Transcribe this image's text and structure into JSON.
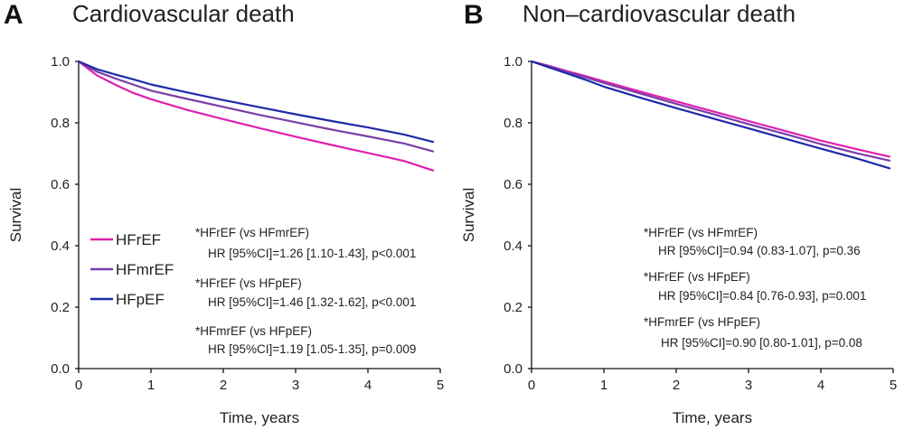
{
  "chart_data": [
    {
      "type": "line",
      "panel_label": "A",
      "title": "Cardiovascular death",
      "xlabel": "Time, years",
      "ylabel": "Survival",
      "xlim": [
        0,
        5
      ],
      "ylim": [
        0.0,
        1.0
      ],
      "x_ticks": [
        "0",
        "1",
        "2",
        "3",
        "4",
        "5"
      ],
      "y_ticks": [
        "0.0",
        "0.2",
        "0.4",
        "0.6",
        "0.8",
        "1.0"
      ],
      "grid": false,
      "legend_position": "left-middle",
      "series": [
        {
          "name": "HFrEF",
          "color": "#e020b0",
          "x": [
            0,
            0.25,
            0.5,
            0.75,
            1,
            1.5,
            2,
            2.5,
            3,
            3.5,
            4,
            4.5,
            4.9
          ],
          "values": [
            1.0,
            0.955,
            0.925,
            0.898,
            0.877,
            0.842,
            0.812,
            0.783,
            0.755,
            0.728,
            0.702,
            0.676,
            0.645
          ]
        },
        {
          "name": "HFmrEF",
          "color": "#7a3ea8",
          "x": [
            0,
            0.25,
            0.5,
            0.75,
            1,
            1.5,
            2,
            2.5,
            3,
            3.5,
            4,
            4.5,
            4.9
          ],
          "values": [
            1.0,
            0.967,
            0.945,
            0.925,
            0.905,
            0.878,
            0.852,
            0.826,
            0.802,
            0.778,
            0.756,
            0.733,
            0.707
          ]
        },
        {
          "name": "HFpEF",
          "color": "#1f2aa8",
          "x": [
            0,
            0.25,
            0.5,
            0.75,
            1,
            1.5,
            2,
            2.5,
            3,
            3.5,
            4,
            4.5,
            4.9
          ],
          "values": [
            1.0,
            0.975,
            0.958,
            0.942,
            0.925,
            0.899,
            0.874,
            0.851,
            0.828,
            0.806,
            0.785,
            0.762,
            0.738
          ]
        }
      ],
      "annotations": [
        {
          "line1": "*HFrEF (vs HFmrEF)",
          "line2": "HR [95%CI]=1.26 [1.10-1.43], p<0.001"
        },
        {
          "line1": "*HFrEF (vs HFpEF)",
          "line2": "HR [95%CI]=1.46 [1.32-1.62], p<0.001"
        },
        {
          "line1": "*HFmrEF (vs HFpEF)",
          "line2": "HR [95%CI]=1.19 [1.05-1.35], p=0.009"
        }
      ]
    },
    {
      "type": "line",
      "panel_label": "B",
      "title": "Non–cardiovascular death",
      "xlabel": "Time, years",
      "ylabel": "Survival",
      "xlim": [
        0,
        5
      ],
      "ylim": [
        0.0,
        1.0
      ],
      "x_ticks": [
        "0",
        "1",
        "2",
        "3",
        "4",
        "5"
      ],
      "y_ticks": [
        "0.0",
        "0.2",
        "0.4",
        "0.6",
        "0.8",
        "1.0"
      ],
      "grid": false,
      "series": [
        {
          "name": "HFrEF",
          "color": "#e020b0",
          "x": [
            0,
            0.25,
            0.5,
            0.75,
            1,
            1.5,
            2,
            2.5,
            3,
            3.5,
            4,
            4.5,
            4.95
          ],
          "values": [
            1.0,
            0.985,
            0.968,
            0.952,
            0.935,
            0.902,
            0.87,
            0.838,
            0.806,
            0.774,
            0.742,
            0.714,
            0.69
          ]
        },
        {
          "name": "HFmrEF",
          "color": "#7a3ea8",
          "x": [
            0,
            0.25,
            0.5,
            0.75,
            1,
            1.5,
            2,
            2.5,
            3,
            3.5,
            4,
            4.5,
            4.95
          ],
          "values": [
            1.0,
            0.983,
            0.965,
            0.948,
            0.93,
            0.896,
            0.862,
            0.829,
            0.796,
            0.764,
            0.731,
            0.701,
            0.677
          ]
        },
        {
          "name": "HFpEF",
          "color": "#1f2aa8",
          "x": [
            0,
            0.25,
            0.5,
            0.75,
            1,
            1.5,
            2,
            2.5,
            3,
            3.5,
            4,
            4.5,
            4.95
          ],
          "values": [
            1.0,
            0.98,
            0.96,
            0.94,
            0.918,
            0.882,
            0.848,
            0.815,
            0.782,
            0.749,
            0.716,
            0.684,
            0.652
          ]
        }
      ],
      "annotations": [
        {
          "line1": "*HFrEF (vs HFmrEF)",
          "line2": "HR [95%CI]=0.94 (0.83-1.07], p=0.36"
        },
        {
          "line1": "*HFrEF (vs HFpEF)",
          "line2": "HR [95%CI]=0.84 [0.76-0.93], p=0.001"
        },
        {
          "line1": "*HFmrEF (vs HFpEF)",
          "line2": "HR [95%CI]=0.90 [0.80-1.01], p=0.08"
        }
      ]
    }
  ]
}
